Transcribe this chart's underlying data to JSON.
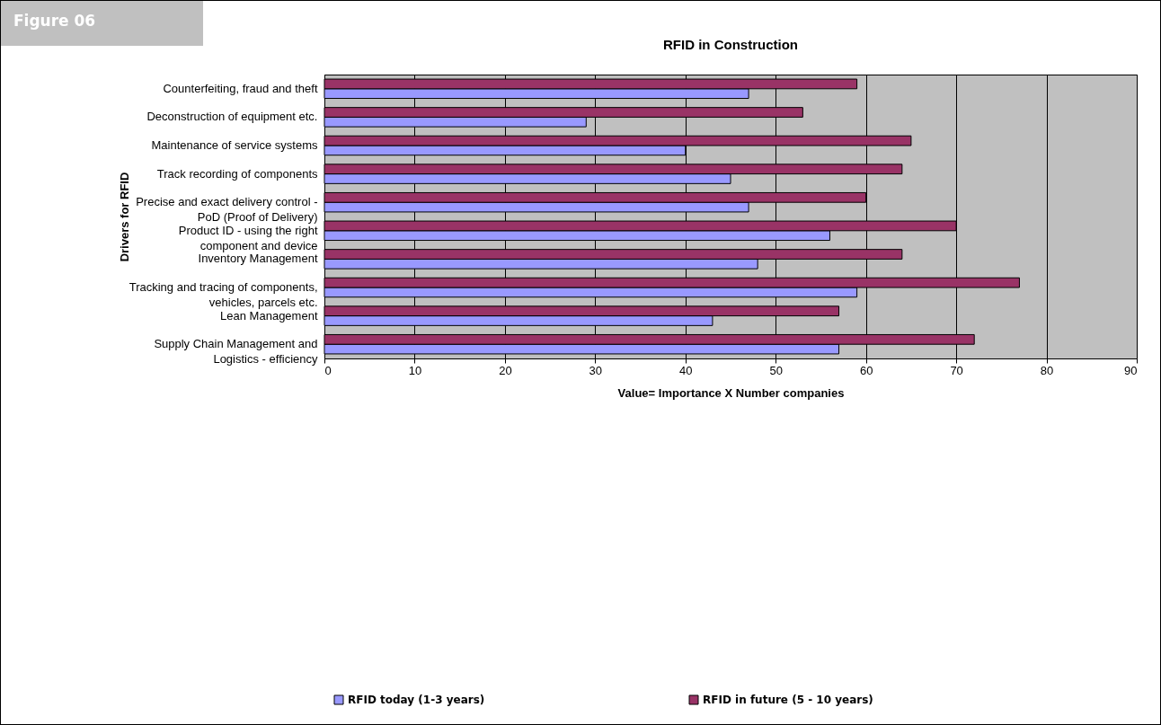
{
  "chart_data": {
    "type": "bar",
    "orientation": "horizontal",
    "title": "RFID in Construction",
    "xlabel": "Value= Importance X Number companies",
    "ylabel": "Drivers for RFID",
    "annotations": [
      "Figure 06"
    ],
    "categories": [
      "Counterfeiting, fraud and theft",
      "Deconstruction of equipment etc.",
      "Maintenance of service systems",
      "Track recording of components",
      "Precise and exact delivery control -\nPoD (Proof of Delivery)",
      "Product ID - using the right\ncomponent and device",
      "Inventory Management",
      "Tracking and tracing of components,\nvehicles, parcels etc.",
      "Lean Management",
      "Supply Chain Management and\nLogistics - efficiency"
    ],
    "series": [
      {
        "name": "RFID today (1-3 years)",
        "color": "#9999ff",
        "values": [
          47,
          29,
          40,
          45,
          47,
          56,
          48,
          59,
          43,
          57
        ]
      },
      {
        "name": "RFID in future (5 - 10 years)",
        "color": "#993366",
        "values": [
          59,
          53,
          65,
          64,
          60,
          70,
          64,
          77,
          57,
          72
        ]
      }
    ],
    "xlim": [
      0,
      90
    ],
    "xticks": [
      0,
      10,
      20,
      30,
      40,
      50,
      60,
      70,
      80,
      90
    ],
    "grid": "x",
    "legend": "bottom"
  }
}
